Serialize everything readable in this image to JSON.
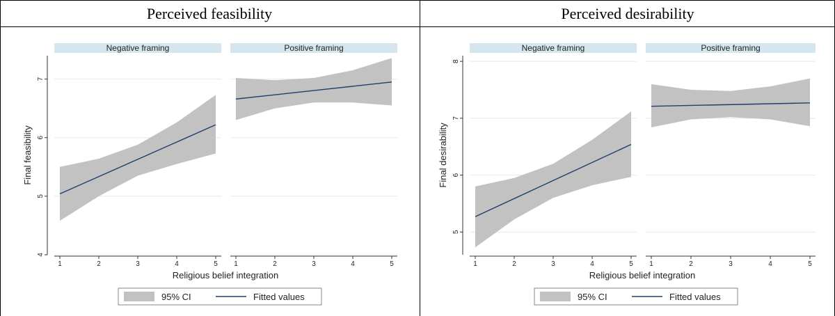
{
  "table": {
    "headers": [
      "Perceived feasibility",
      "Perceived desirability"
    ]
  },
  "colors": {
    "ci_band": "#c2c2c2",
    "fitted_line": "#1f3f6b",
    "strip_bg": "#d6e6ee",
    "gridline": "#e8e8e8"
  },
  "chart_data": [
    {
      "type": "line",
      "title": "",
      "xlabel": "Religious belief integration",
      "ylabel": "Final feasibility",
      "xlim": [
        1,
        5
      ],
      "ylim": [
        4,
        7.4
      ],
      "xticks": [
        1,
        2,
        3,
        4,
        5
      ],
      "yticks": [
        4,
        5,
        6,
        7
      ],
      "grid": true,
      "legend": {
        "placement": "bottom",
        "entries": [
          "95% CI",
          "Fitted values"
        ]
      },
      "panels": [
        {
          "label": "Negative framing",
          "fitted": {
            "x": [
              1,
              5
            ],
            "y": [
              5.04,
              6.22
            ]
          },
          "ci": {
            "x": [
              1,
              2,
              3,
              4,
              5
            ],
            "lower": [
              4.58,
              5.0,
              5.35,
              5.55,
              5.73
            ],
            "upper": [
              5.5,
              5.64,
              5.88,
              6.26,
              6.73
            ]
          }
        },
        {
          "label": "Positive framing",
          "fitted": {
            "x": [
              1,
              5
            ],
            "y": [
              6.66,
              6.95
            ]
          },
          "ci": {
            "x": [
              1,
              2,
              3,
              4,
              5
            ],
            "lower": [
              6.3,
              6.5,
              6.6,
              6.6,
              6.55
            ],
            "upper": [
              7.02,
              6.98,
              7.02,
              7.15,
              7.36
            ]
          }
        }
      ]
    },
    {
      "type": "line",
      "title": "",
      "xlabel": "Religious belief integration",
      "ylabel": "Final desirability",
      "xlim": [
        1,
        5
      ],
      "ylim": [
        4.6,
        8.1
      ],
      "xticks": [
        1,
        2,
        3,
        4,
        5
      ],
      "yticks": [
        5,
        6,
        7,
        8
      ],
      "grid": true,
      "legend": {
        "placement": "bottom",
        "entries": [
          "95% CI",
          "Fitted values"
        ]
      },
      "panels": [
        {
          "label": "Negative framing",
          "fitted": {
            "x": [
              1,
              5
            ],
            "y": [
              5.27,
              6.54
            ]
          },
          "ci": {
            "x": [
              1,
              2,
              3,
              4,
              5
            ],
            "lower": [
              4.73,
              5.22,
              5.6,
              5.82,
              5.97
            ],
            "upper": [
              5.8,
              5.95,
              6.2,
              6.62,
              7.12
            ]
          }
        },
        {
          "label": "Positive framing",
          "fitted": {
            "x": [
              1,
              5
            ],
            "y": [
              7.21,
              7.27
            ]
          },
          "ci": {
            "x": [
              1,
              2,
              3,
              4,
              5
            ],
            "lower": [
              6.84,
              6.98,
              7.02,
              6.98,
              6.86
            ],
            "upper": [
              7.6,
              7.5,
              7.48,
              7.56,
              7.7
            ]
          }
        }
      ]
    }
  ]
}
